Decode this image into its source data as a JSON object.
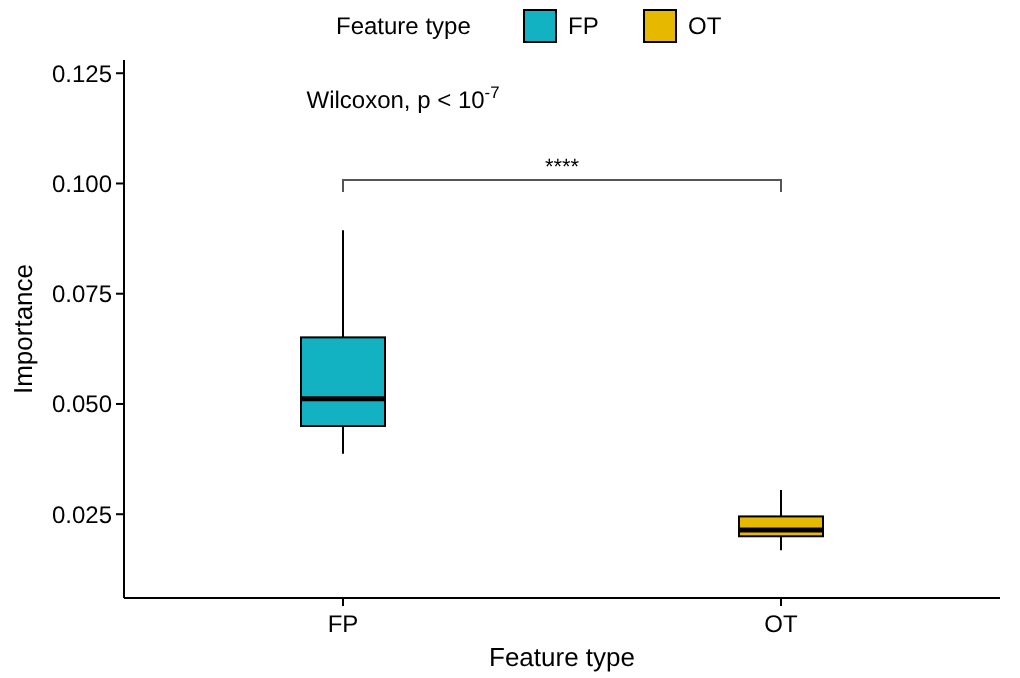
{
  "chart_data": {
    "type": "box",
    "xlabel": "Feature type",
    "ylabel": "Importance",
    "legend_title": "Feature type",
    "legend": "top",
    "categories": [
      "FP",
      "OT"
    ],
    "series": [
      {
        "name": "FP",
        "color": "#12b2c2",
        "boxes": [
          {
            "low": 0.0387,
            "q1": 0.045,
            "median": 0.0512,
            "q3": 0.0651,
            "high": 0.0894
          },
          null
        ]
      },
      {
        "name": "OT",
        "color": "#e7b800",
        "boxes": [
          null,
          {
            "low": 0.0168,
            "q1": 0.02,
            "median": 0.0214,
            "q3": 0.0245,
            "high": 0.0305
          }
        ]
      }
    ],
    "ylim": [
      0.006,
      0.128
    ],
    "yticks": [
      {
        "value": 0.025,
        "label": "0.025"
      },
      {
        "value": 0.05,
        "label": "0.050"
      },
      {
        "value": 0.075,
        "label": "0.075"
      },
      {
        "value": 0.1,
        "label": "0.100"
      },
      {
        "value": 0.125,
        "label": "0.125"
      }
    ],
    "annotations": [
      "Wilcoxon, p < 10$^{-7}$",
      "****"
    ]
  }
}
